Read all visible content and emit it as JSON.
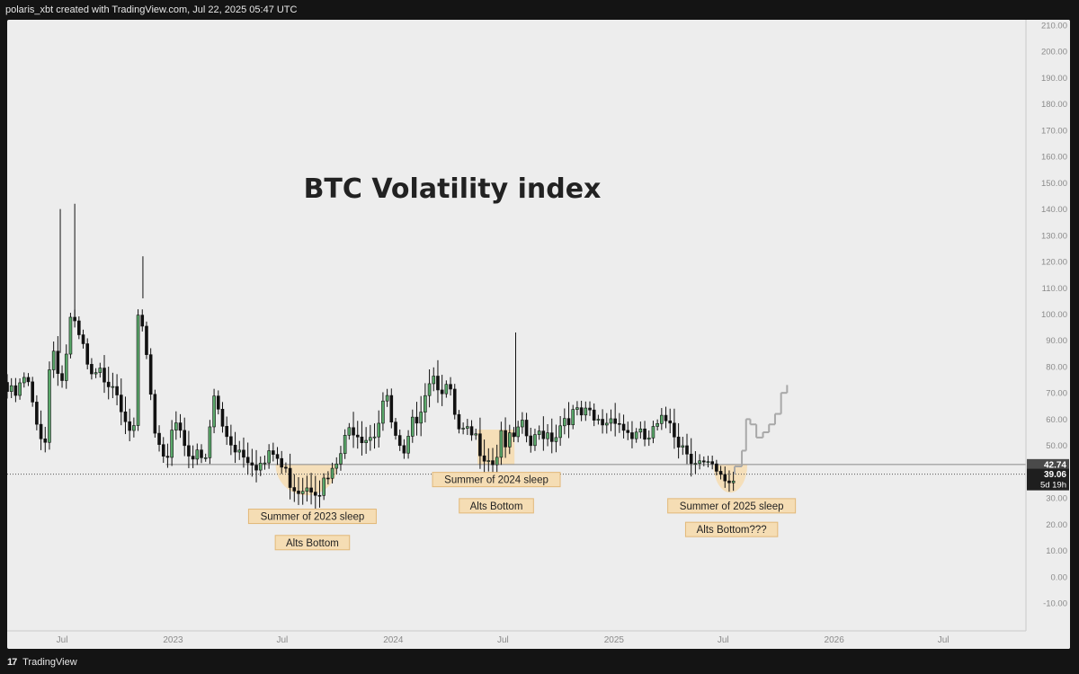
{
  "header": {
    "attribution": "polaris_xbt created with TradingView.com, Jul 22, 2025 05:47 UTC"
  },
  "footer": {
    "brand": "TradingView",
    "logo_icon": "tradingview-logo-icon"
  },
  "colors": {
    "background": "#ededed",
    "up": "#5aa86a",
    "down": "#111111",
    "projection": "#a8a8a8",
    "highlight": "#f5ddb4",
    "support_line": "#888888"
  },
  "chart_data": {
    "type": "candlestick",
    "title": "BTC Volatility index",
    "xlabel": "",
    "ylabel": "",
    "x_range": [
      "2022-04-01",
      "2026-11-15"
    ],
    "ylim": [
      -10,
      210
    ],
    "y_ticks": [
      210,
      200,
      190,
      180,
      170,
      160,
      150,
      140,
      130,
      120,
      110,
      100,
      90,
      80,
      70,
      60,
      50,
      40,
      30,
      20,
      10,
      0,
      -10
    ],
    "y_tick_labels": [
      "210.00",
      "200.00",
      "190.00",
      "180.00",
      "170.00",
      "160.00",
      "150.00",
      "140.00",
      "130.00",
      "120.00",
      "110.00",
      "100.00",
      "90.00",
      "80.00",
      "70.00",
      "60.00",
      "50.00",
      "40.00",
      "30.00",
      "20.00",
      "10.00",
      "0.00",
      "-10.00"
    ],
    "x_ticks": [
      {
        "date": "2022-07-01",
        "label": "Jul"
      },
      {
        "date": "2023-01-01",
        "label": "2023"
      },
      {
        "date": "2023-07-01",
        "label": "Jul"
      },
      {
        "date": "2024-01-01",
        "label": "2024"
      },
      {
        "date": "2024-07-01",
        "label": "Jul"
      },
      {
        "date": "2025-01-01",
        "label": "2025"
      },
      {
        "date": "2025-07-01",
        "label": "Jul"
      },
      {
        "date": "2026-01-01",
        "label": "2026"
      },
      {
        "date": "2026-07-01",
        "label": "Jul"
      }
    ],
    "current_value": {
      "label": "39.06",
      "value": 39.06,
      "timer": "5d 19h"
    },
    "support_line": {
      "label": "42.74",
      "value": 42.74,
      "from": "2022-12-20"
    },
    "price_path": [
      [
        "2022-04-01",
        74
      ],
      [
        "2022-04-20",
        70
      ],
      [
        "2022-05-10",
        78
      ],
      [
        "2022-05-25",
        60
      ],
      [
        "2022-06-10",
        55
      ],
      [
        "2022-06-20",
        92
      ],
      [
        "2022-07-10",
        75
      ],
      [
        "2022-07-20",
        100
      ],
      [
        "2022-08-10",
        90
      ],
      [
        "2022-08-25",
        76
      ],
      [
        "2022-09-10",
        79
      ],
      [
        "2022-10-01",
        77
      ],
      [
        "2022-10-20",
        65
      ],
      [
        "2022-11-05",
        55
      ],
      [
        "2022-11-12",
        106
      ],
      [
        "2022-11-28",
        80
      ],
      [
        "2022-12-10",
        52
      ],
      [
        "2022-12-25",
        43
      ],
      [
        "2023-01-10",
        64
      ],
      [
        "2023-01-25",
        55
      ],
      [
        "2023-02-10",
        48
      ],
      [
        "2023-03-05",
        45
      ],
      [
        "2023-03-15",
        72
      ],
      [
        "2023-04-01",
        58
      ],
      [
        "2023-04-20",
        52
      ],
      [
        "2023-05-15",
        48
      ],
      [
        "2023-06-05",
        44
      ],
      [
        "2023-06-25",
        49
      ],
      [
        "2023-07-10",
        42
      ],
      [
        "2023-08-01",
        36
      ],
      [
        "2023-08-20",
        38
      ],
      [
        "2023-09-10",
        36
      ],
      [
        "2023-10-01",
        41
      ],
      [
        "2023-10-15",
        50
      ],
      [
        "2023-11-01",
        60
      ],
      [
        "2023-11-20",
        56
      ],
      [
        "2023-12-10",
        58
      ],
      [
        "2023-12-25",
        72
      ],
      [
        "2024-01-10",
        55
      ],
      [
        "2024-01-25",
        45
      ],
      [
        "2024-02-10",
        60
      ],
      [
        "2024-03-01",
        73
      ],
      [
        "2024-03-10",
        80
      ],
      [
        "2024-03-25",
        76
      ],
      [
        "2024-04-10",
        72
      ],
      [
        "2024-04-25",
        56
      ],
      [
        "2024-05-20",
        55
      ],
      [
        "2024-06-10",
        49
      ],
      [
        "2024-06-25",
        46
      ],
      [
        "2024-07-05",
        58
      ],
      [
        "2024-07-15",
        52
      ],
      [
        "2024-07-25",
        54
      ],
      [
        "2024-08-10",
        58
      ],
      [
        "2024-08-25",
        51
      ],
      [
        "2024-09-10",
        58
      ],
      [
        "2024-10-01",
        56
      ],
      [
        "2024-10-20",
        64
      ],
      [
        "2024-11-10",
        63
      ],
      [
        "2024-11-25",
        63
      ],
      [
        "2024-12-10",
        60
      ],
      [
        "2024-12-25",
        61
      ],
      [
        "2025-01-10",
        64
      ],
      [
        "2025-01-25",
        58
      ],
      [
        "2025-02-15",
        55
      ],
      [
        "2025-03-05",
        54
      ],
      [
        "2025-03-20",
        58
      ],
      [
        "2025-04-10",
        63
      ],
      [
        "2025-04-25",
        54
      ],
      [
        "2025-05-15",
        49
      ],
      [
        "2025-06-05",
        44
      ],
      [
        "2025-06-20",
        42
      ],
      [
        "2025-07-05",
        38
      ],
      [
        "2025-07-20",
        39
      ]
    ],
    "spikes": [
      {
        "date": "2022-06-28",
        "high": 140
      },
      {
        "date": "2022-07-22",
        "high": 142
      },
      {
        "date": "2022-11-12",
        "high": 122
      },
      {
        "date": "2024-07-22",
        "high": 93
      }
    ],
    "projection": [
      [
        "2025-07-20",
        39
      ],
      [
        "2025-08-01",
        42
      ],
      [
        "2025-08-08",
        48
      ],
      [
        "2025-08-15",
        60
      ],
      [
        "2025-08-25",
        58
      ],
      [
        "2025-09-05",
        53
      ],
      [
        "2025-09-15",
        55
      ],
      [
        "2025-09-25",
        58
      ],
      [
        "2025-10-05",
        62
      ],
      [
        "2025-10-15",
        70
      ]
    ],
    "zones": [
      {
        "type": "arc",
        "from": "2023-06-20",
        "to": "2023-10-01",
        "top": 42.74,
        "bottom": 31
      },
      {
        "type": "rect",
        "from": "2024-05-20",
        "to": "2024-07-20",
        "top": 56,
        "bottom": 42.74
      },
      {
        "type": "arc",
        "from": "2025-06-15",
        "to": "2025-08-10",
        "top": 42.74,
        "bottom": 32
      }
    ],
    "annotations": [
      {
        "text": "Summer of 2023 sleep",
        "date": "2023-08-20",
        "value": 23
      },
      {
        "text": "Alts Bottom",
        "date": "2023-08-20",
        "value": 13
      },
      {
        "text": "Summer of 2024 sleep",
        "date": "2024-06-20",
        "value": 37
      },
      {
        "text": "Alts Bottom",
        "date": "2024-06-20",
        "value": 27
      },
      {
        "text": "Summer of 2025 sleep",
        "date": "2025-07-15",
        "value": 27
      },
      {
        "text": "Alts Bottom???",
        "date": "2025-07-15",
        "value": 18
      }
    ]
  }
}
